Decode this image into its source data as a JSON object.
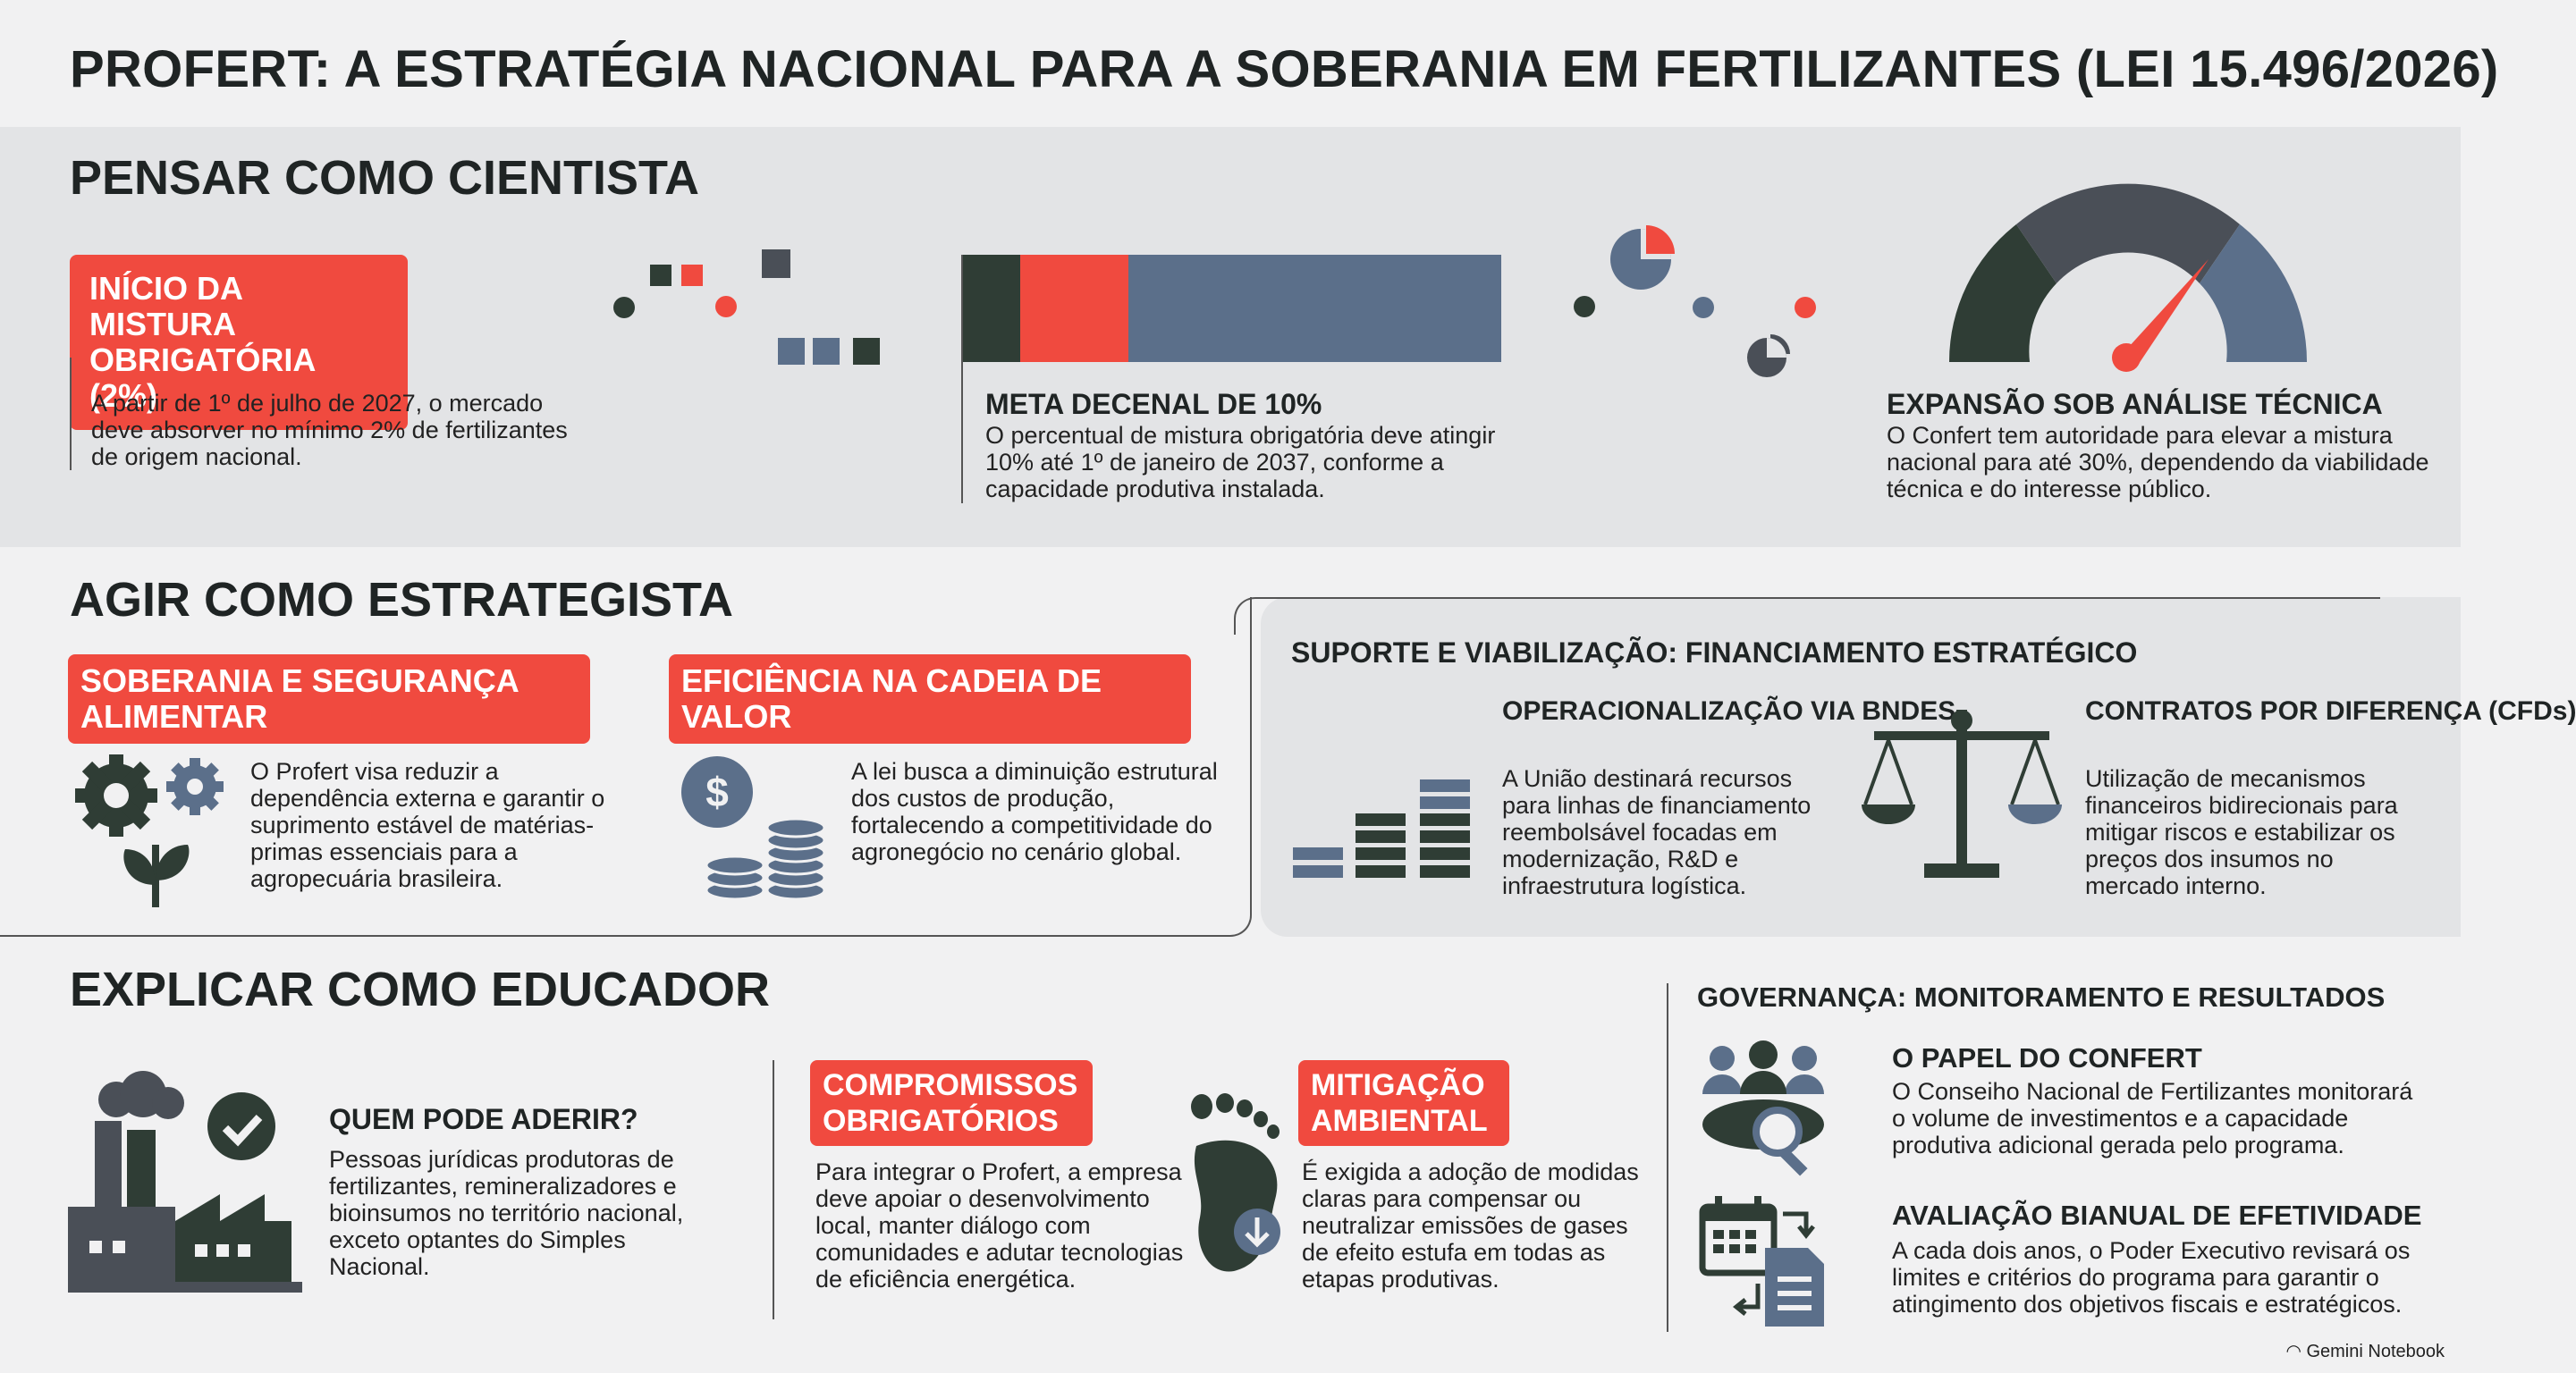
{
  "title": "PROFERT: A ESTRATÉGIA NACIONAL PARA A SOBERANIA EM FERTILIZANTES (LEI 15.496/2026)",
  "colors": {
    "red": "#f04a3f",
    "dark": "#2f3d35",
    "slate": "#5b6f8a",
    "gray": "#4a4f57",
    "band": "#e3e4e6"
  },
  "cientista": {
    "heading": "PENSAR COMO CIENTISTA",
    "tag": "INÍCIO DA MISTURA OBRIGATÓRIA (2%)",
    "tag_text": "A partir de 1º de julho de 2027, o mercado deve absorver no mínimo 2% de fertilizantes de origem nacional.",
    "meta_title": "META DECENAL DE 10%",
    "meta_text": "O percentual de mistura obrigatória deve atingir 10% até 1º de janeiro de 2037, conforme a capacidade produtiva instalada.",
    "bar_segments": [
      {
        "name": "dark",
        "share": 0.11,
        "color": "#2f3d35"
      },
      {
        "name": "red",
        "share": 0.2,
        "color": "#f04a3f"
      },
      {
        "name": "slate",
        "share": 0.69,
        "color": "#5b6f8a"
      }
    ],
    "gauge_level": 0.75,
    "expansao_title": "EXPANSÃO SOB ANÁLISE TÉCNICA",
    "expansao_text": "O Confert tem autoridade para elevar a mistura nacional para até 30%, dependendo da viabilidade técnica e do interesse público."
  },
  "estrategista": {
    "heading": "AGIR COMO ESTRATEGISTA",
    "card1_tag": "SOBERANIA E SEGURANÇA ALIMENTAR",
    "card1_text": "O Profert visa reduzir a dependência externa e garantir o suprimento estável de matérias-primas essenciais para a agropecuária brasileira.",
    "card1_icon": "gears-plant-icon",
    "card2_tag": "EFICIÊNCIA NA CADEIA DE VALOR",
    "card2_text": "A lei busca a diminuição estrutural dos custos de produção, fortalecendo a competitividade do agronegócio no cenário global.",
    "card2_icon": "dollar-coins-icon",
    "suporte_title": "SUPORTE E VIABILIZAÇÃO: FINANCIAMENTO ESTRATÉGICO",
    "bndes_title": "OPERACIONALIZAÇÃO VIA BNDES",
    "bndes_text": "A União destinará recursos para linhas de financiamento reembolsável focadas em modernização, R&D e infraestrutura logística.",
    "cfd_title": "CONTRATOS POR DIFERENÇA (CFDs)",
    "cfd_text": "Utilização de mecanismos financeiros bidirecionais para mitigar riscos e estabilizar os preços dos insumos no mercado interno."
  },
  "educador": {
    "heading": "EXPLICAR COMO EDUCADOR",
    "aderir_title": "QUEM PODE ADERIR?",
    "aderir_text": "Pessoas jurídicas produtoras de fertilizantes, remineralizadores e bioinsumos no território nacional, exceto optantes do Simples Nacional.",
    "comp_tag": "COMPROMISSOS OBRIGATÓRIOS",
    "comp_text": "Para integrar o Profert, a empresa deve apoiar o desenvolvimento local, manter diálogo com comunidades e adutar tecnologias de eficiência energética.",
    "mitig_tag": "MITIGAÇÃO AMBIENTAL",
    "mitig_text": "É exigida a adoção de modidas claras para compensar ou neutralizar emissões de gases de efeito estufa em todas as etapas produtivas."
  },
  "governanca": {
    "heading": "GOVERNANÇA: MONITORAMENTO E RESULTADOS",
    "papel_title": "O PAPEL DO CONFERT",
    "papel_text": "O Conseiho Nacional de Fertilizantes monitorará o volume de investimentos e a capacidade produtiva adicional gerada pelo programa.",
    "aval_title": "AVALIAÇÃO BIANUAL DE EFETIVIDADE",
    "aval_text": "A cada dois anos, o Poder Executivo revisará os limites e critérios do programa para garantir o atingimento dos objetivos fiscais e estratégicos."
  },
  "brand": "Gemini Notebook"
}
